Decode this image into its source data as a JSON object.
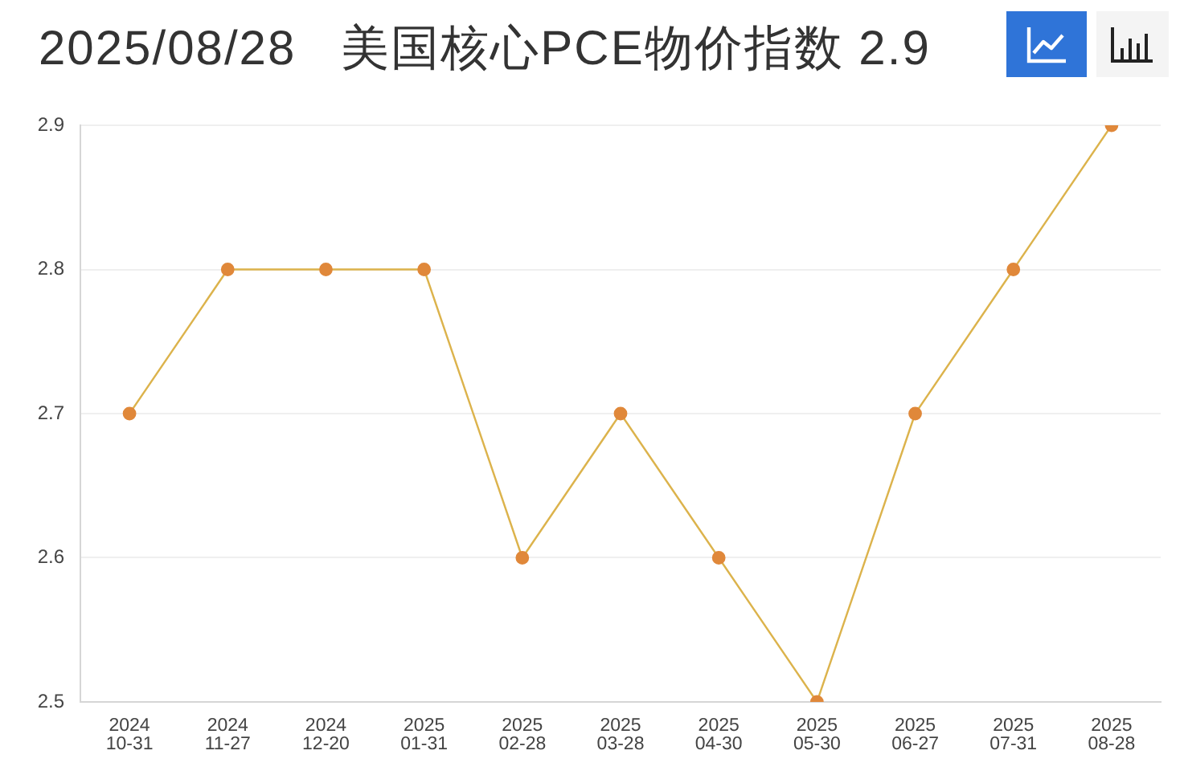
{
  "chart_data": {
    "type": "line",
    "title": "2025/08/28   美国核心PCE物价指数 2.9",
    "categories": [
      "2024\n10-31",
      "2024\n11-27",
      "2024\n12-20",
      "2025\n01-31",
      "2025\n02-28",
      "2025\n03-28",
      "2025\n04-30",
      "2025\n05-30",
      "2025\n06-27",
      "2025\n07-31",
      "2025\n08-28"
    ],
    "series": [
      {
        "color": "#dcb34c",
        "colors": [
          "#e0883a",
          "#e0883a",
          "#e0883a",
          "#e0883a",
          "#e0883a",
          "#e0883a",
          "#e0883a",
          "#e0883a",
          "#e0883a",
          "#e0883a",
          "#e0883a"
        ],
        "values": [
          2.7,
          2.8,
          2.8,
          2.8,
          2.6,
          2.7,
          2.6,
          2.5,
          2.7,
          2.8,
          2.9
        ]
      }
    ],
    "ylim": [
      2.5,
      2.9
    ],
    "yticks": [
      2.5,
      2.6,
      2.7,
      2.8,
      2.9
    ],
    "grid": "y",
    "legend": false,
    "marker": "circle",
    "line_style": "solid"
  }
}
